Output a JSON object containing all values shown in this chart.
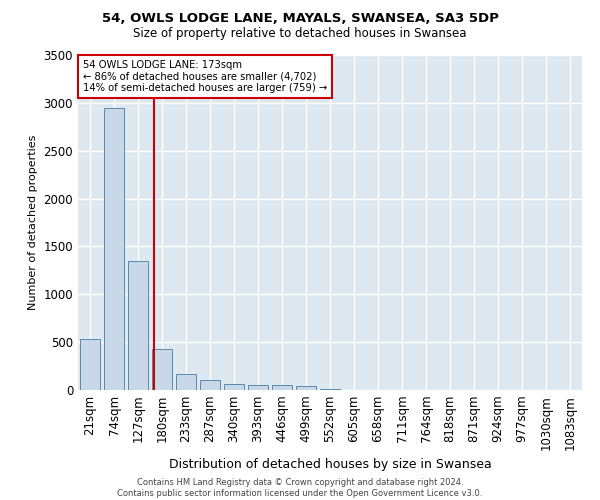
{
  "title1": "54, OWLS LODGE LANE, MAYALS, SWANSEA, SA3 5DP",
  "title2": "Size of property relative to detached houses in Swansea",
  "xlabel": "Distribution of detached houses by size in Swansea",
  "ylabel": "Number of detached properties",
  "footer1": "Contains HM Land Registry data © Crown copyright and database right 2024.",
  "footer2": "Contains public sector information licensed under the Open Government Licence v3.0.",
  "categories": [
    "21sqm",
    "74sqm",
    "127sqm",
    "180sqm",
    "233sqm",
    "287sqm",
    "340sqm",
    "393sqm",
    "446sqm",
    "499sqm",
    "552sqm",
    "605sqm",
    "658sqm",
    "711sqm",
    "764sqm",
    "818sqm",
    "871sqm",
    "924sqm",
    "977sqm",
    "1030sqm",
    "1083sqm"
  ],
  "values": [
    530,
    2950,
    1350,
    430,
    170,
    100,
    65,
    55,
    50,
    40,
    10,
    5,
    3,
    2,
    1,
    1,
    1,
    1,
    0,
    0,
    0
  ],
  "bar_color": "#c8d8e8",
  "bar_edge_color": "#5a8ab0",
  "property_line_x": 2.65,
  "annotation_text1": "54 OWLS LODGE LANE: 173sqm",
  "annotation_text2": "← 86% of detached houses are smaller (4,702)",
  "annotation_text3": "14% of semi-detached houses are larger (759) →",
  "annotation_box_color": "#ffffff",
  "annotation_border_color": "#cc0000",
  "vline_color": "#cc0000",
  "ylim": [
    0,
    3500
  ],
  "fig_background_color": "#ffffff",
  "plot_background_color": "#dde8f0",
  "grid_color": "#ffffff"
}
